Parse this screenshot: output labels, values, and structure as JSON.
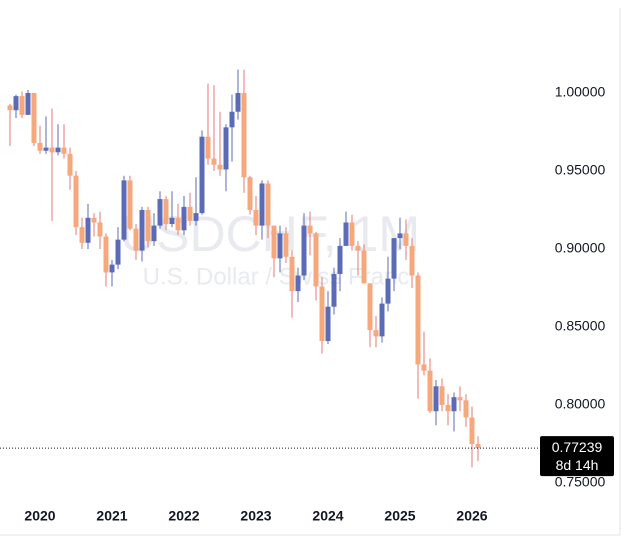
{
  "chart_data": {
    "type": "candlestick",
    "watermark": "USDCHF, 1M",
    "watermark_subtitle": "U.S. Dollar / Swiss Franc",
    "countdown": "8d 14h",
    "categories": [
      null,
      null,
      null,
      null,
      null,
      "2020",
      null,
      null,
      null,
      null,
      null,
      null,
      null,
      null,
      null,
      null,
      null,
      "2021",
      null,
      null,
      null,
      null,
      null,
      null,
      null,
      null,
      null,
      null,
      null,
      "2022",
      null,
      null,
      null,
      null,
      null,
      null,
      null,
      null,
      null,
      null,
      null,
      "2023",
      null,
      null,
      null,
      null,
      null,
      null,
      null,
      null,
      null,
      null,
      null,
      "2024",
      null,
      null,
      null,
      null,
      null,
      null,
      null,
      null,
      null,
      null,
      null,
      "2025",
      null,
      null,
      null,
      null,
      null,
      null,
      null,
      null,
      null,
      null,
      null,
      "2026",
      null
    ],
    "open": [
      0.992,
      0.989,
      0.998,
      0.986,
      1.0,
      0.968,
      0.963,
      0.965,
      0.962,
      0.965,
      0.961,
      0.947,
      0.914,
      0.904,
      0.92,
      0.917,
      0.908,
      0.885,
      0.89,
      0.906,
      0.944,
      0.913,
      0.899,
      0.925,
      0.905,
      0.915,
      0.932,
      0.916,
      0.92,
      0.912,
      0.927,
      0.918,
      0.923,
      0.972,
      0.958,
      0.954,
      0.951,
      0.978,
      0.988,
      1.0,
      0.946,
      0.925,
      0.915,
      0.942,
      0.915,
      0.894,
      0.91,
      0.895,
      0.873,
      0.883,
      0.915,
      0.91,
      0.876,
      0.841,
      0.863,
      0.884,
      0.902,
      0.917,
      0.902,
      0.899,
      0.878,
      0.848,
      0.844,
      0.865,
      0.881,
      0.907,
      0.91,
      0.902,
      0.883,
      0.826,
      0.822,
      0.796,
      0.812,
      0.8,
      0.796,
      0.805,
      0.803,
      0.792,
      0.775
    ],
    "high": [
      0.993,
      0.999,
      1.001,
      1.002,
      1.0,
      0.979,
      0.985,
      0.99,
      0.98,
      0.98,
      0.965,
      0.95,
      0.92,
      0.929,
      0.923,
      0.924,
      0.91,
      0.893,
      0.914,
      0.947,
      0.947,
      0.916,
      0.927,
      0.927,
      0.923,
      0.937,
      0.934,
      0.937,
      0.929,
      0.934,
      0.936,
      0.946,
      0.976,
      1.006,
      1.005,
      0.988,
      0.98,
      0.999,
      1.015,
      1.015,
      0.947,
      0.934,
      0.944,
      0.944,
      0.915,
      0.915,
      0.914,
      0.899,
      0.888,
      0.923,
      0.924,
      0.911,
      0.882,
      0.873,
      0.888,
      0.907,
      0.924,
      0.922,
      0.905,
      0.903,
      0.878,
      0.857,
      0.869,
      0.895,
      0.907,
      0.92,
      0.919,
      0.907,
      0.885,
      0.847,
      0.83,
      0.816,
      0.817,
      0.807,
      0.808,
      0.812,
      0.807,
      0.799,
      0.78
    ],
    "low": [
      0.966,
      0.984,
      0.984,
      0.986,
      0.966,
      0.961,
      0.961,
      0.918,
      0.96,
      0.958,
      0.938,
      0.909,
      0.9,
      0.9,
      0.908,
      0.9,
      0.876,
      0.876,
      0.887,
      0.905,
      0.912,
      0.893,
      0.892,
      0.901,
      0.902,
      0.913,
      0.912,
      0.914,
      0.909,
      0.909,
      0.915,
      0.915,
      0.922,
      0.954,
      0.95,
      0.947,
      0.937,
      0.956,
      0.983,
      0.936,
      0.922,
      0.909,
      0.906,
      0.907,
      0.882,
      0.885,
      0.891,
      0.856,
      0.866,
      0.88,
      0.896,
      0.867,
      0.833,
      0.839,
      0.858,
      0.873,
      0.902,
      0.899,
      0.883,
      0.878,
      0.837,
      0.837,
      0.84,
      0.86,
      0.873,
      0.9,
      0.893,
      0.875,
      0.804,
      0.819,
      0.795,
      0.787,
      0.796,
      0.787,
      0.783,
      0.796,
      0.786,
      0.76,
      0.764
    ],
    "close": [
      0.989,
      0.998,
      0.986,
      1.0,
      0.968,
      0.963,
      0.965,
      0.962,
      0.965,
      0.961,
      0.947,
      0.914,
      0.904,
      0.92,
      0.917,
      0.908,
      0.885,
      0.89,
      0.906,
      0.944,
      0.913,
      0.899,
      0.925,
      0.905,
      0.915,
      0.932,
      0.916,
      0.92,
      0.912,
      0.927,
      0.918,
      0.923,
      0.972,
      0.958,
      0.954,
      0.951,
      0.978,
      0.988,
      1.0,
      0.946,
      0.925,
      0.915,
      0.942,
      0.915,
      0.894,
      0.91,
      0.895,
      0.873,
      0.883,
      0.915,
      0.91,
      0.876,
      0.841,
      0.863,
      0.884,
      0.902,
      0.917,
      0.902,
      0.899,
      0.878,
      0.848,
      0.844,
      0.865,
      0.881,
      0.907,
      0.91,
      0.902,
      0.883,
      0.826,
      0.822,
      0.796,
      0.812,
      0.8,
      0.796,
      0.805,
      0.803,
      0.792,
      0.775,
      0.77239
    ],
    "up_color": "#5c6bb5",
    "down_color": "#f6a77c",
    "ylim": [
      0.7423,
      1.0545
    ],
    "yticks": [
      {
        "value": 0.75,
        "label": "0.75000"
      },
      {
        "value": 0.8,
        "label": "0.80000"
      },
      {
        "value": 0.85,
        "label": "0.85000"
      },
      {
        "value": 0.9,
        "label": "0.90000"
      },
      {
        "value": 0.95,
        "label": "0.95000"
      },
      {
        "value": 1.0,
        "label": "1.00000"
      }
    ]
  }
}
